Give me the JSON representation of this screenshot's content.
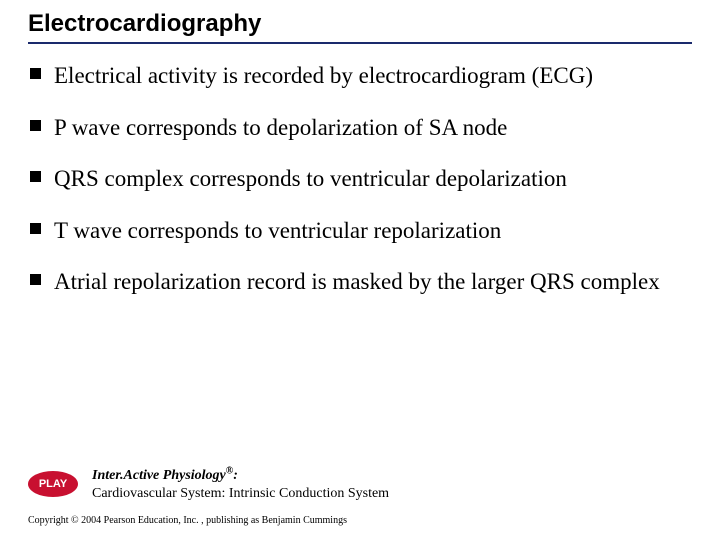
{
  "title": "Electrocardiography",
  "title_underline_color": "#1a2a6c",
  "bullet_marker_color": "#000000",
  "body_fontsize": 23,
  "bullets": [
    "Electrical activity is recorded by electrocardiogram (ECG)",
    "P wave corresponds to depolarization of SA node",
    "QRS complex corresponds to ventricular depolarization",
    "T wave corresponds to ventricular repolarization",
    "Atrial repolarization record is masked by the larger QRS complex"
  ],
  "play": {
    "button_label": "PLAY",
    "button_bg": "#c81030",
    "button_fg": "#ffffff",
    "caption_line1": "Inter.Active Physiology",
    "caption_reg": "®",
    "caption_colon": ":",
    "caption_line2": "Cardiovascular System: Intrinsic Conduction System"
  },
  "copyright": "Copyright © 2004 Pearson Education, Inc. , publishing as Benjamin Cummings"
}
